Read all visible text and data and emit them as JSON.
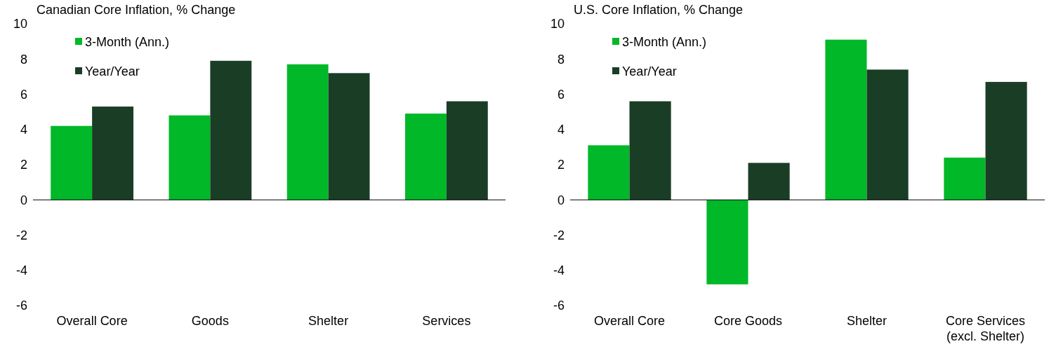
{
  "chart_data": [
    {
      "type": "bar",
      "title": "Canadian Core Inflation, % Change",
      "categories": [
        "Overall Core",
        "Goods",
        "Shelter",
        "Services"
      ],
      "series": [
        {
          "name": "3-Month (Ann.)",
          "color": "#00b828",
          "values": [
            4.2,
            4.8,
            7.7,
            4.9
          ]
        },
        {
          "name": "Year/Year",
          "color": "#1a3d26",
          "values": [
            5.3,
            7.9,
            7.2,
            5.6
          ]
        }
      ],
      "ylim": [
        -6,
        10
      ],
      "yticks": [
        -6,
        -4,
        -2,
        0,
        2,
        4,
        6,
        8,
        10
      ],
      "legend": "top left"
    },
    {
      "type": "bar",
      "title": "U.S. Core Inflation, % Change",
      "categories": [
        "Overall Core",
        "Core Goods",
        "Shelter",
        "Core Services\n(excl. Shelter)"
      ],
      "series": [
        {
          "name": "3-Month (Ann.)",
          "color": "#00b828",
          "values": [
            3.1,
            -4.8,
            9.1,
            2.4
          ]
        },
        {
          "name": "Year/Year",
          "color": "#1a3d26",
          "values": [
            5.6,
            2.1,
            7.4,
            6.7
          ]
        }
      ],
      "ylim": [
        -6,
        10
      ],
      "yticks": [
        -6,
        -4,
        -2,
        0,
        2,
        4,
        6,
        8,
        10
      ],
      "legend": "top left"
    }
  ]
}
